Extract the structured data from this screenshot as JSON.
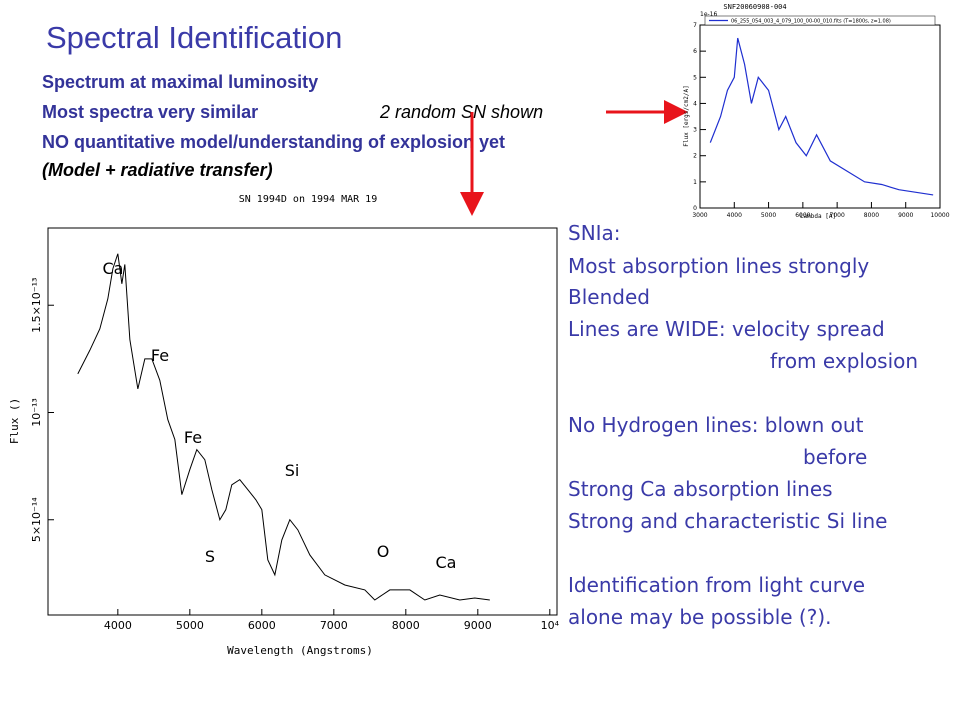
{
  "slide": {
    "title": "Spectral Identification",
    "bullets": [
      "Spectrum at maximal luminosity",
      "Most spectra very similar",
      "NO quantitative model/understanding of explosion yet",
      "(Model + radiative transfer)"
    ],
    "note": "2 random SN shown",
    "notes_block": [
      "SNIa:",
      "Most absorption lines strongly",
      "Blended",
      "Lines are WIDE: velocity spread",
      "from explosion",
      "No Hydrogen lines: blown out",
      "before",
      "Strong Ca absorption lines",
      "Strong and characteristic Si line",
      "Identification from light curve",
      "alone may be possible (?)."
    ]
  },
  "chart_data": [
    {
      "type": "line",
      "title": "SN 1994D on 1994 MAR 19",
      "x_label": "Wavelength (Angstroms)",
      "y_label": "Flux ()",
      "color": "#000000",
      "x": [
        3444,
        3611,
        3750,
        3861,
        3931,
        4000,
        4056,
        4097,
        4167,
        4278,
        4375,
        4472,
        4583,
        4694,
        4792,
        4889,
        5000,
        5097,
        5208,
        5306,
        5417,
        5500,
        5583,
        5694,
        5806,
        5917,
        6000,
        6083,
        6181,
        6278,
        6389,
        6500,
        6667,
        6875,
        7153,
        7431,
        7569,
        7778,
        8056,
        8264,
        8472,
        8750,
        8958,
        9167
      ],
      "values": [
        1.18e-13,
        1.29e-13,
        1.39e-13,
        1.53e-13,
        1.67e-13,
        1.74e-13,
        1.6e-13,
        1.69e-13,
        1.34e-13,
        1.11e-13,
        1.25e-13,
        1.25e-13,
        1.15e-13,
        9.67e-14,
        8.74e-14,
        6.17e-14,
        7.34e-14,
        8.27e-14,
        7.8e-14,
        6.4e-14,
        5e-14,
        5.47e-14,
        6.63e-14,
        6.87e-14,
        6.4e-14,
        5.93e-14,
        5.47e-14,
        3.13e-14,
        2.43e-14,
        4.06e-14,
        5e-14,
        4.53e-14,
        3.36e-14,
        2.43e-14,
        1.96e-14,
        1.73e-14,
        1.26e-14,
        1.73e-14,
        1.73e-14,
        1.26e-14,
        1.49e-14,
        1.26e-14,
        1.35e-14,
        1.26e-14
      ],
      "xlim": [
        3030,
        10100
      ],
      "xticks": [
        4000,
        5000,
        6000,
        7000,
        8000,
        9000,
        {
          "value": 10000,
          "label": "10⁴"
        }
      ],
      "ylim": [
        5.6e-15,
        1.86e-13
      ],
      "yticks": [
        {
          "value": 5e-14,
          "label": "5×10⁻¹⁴"
        },
        {
          "value": 1e-13,
          "label": "10⁻¹³"
        },
        {
          "value": 1.5e-13,
          "label": "1.5×10⁻¹³"
        }
      ],
      "annotations": [
        "Ca",
        "Fe",
        "Fe",
        "Si",
        "S",
        "O",
        "Ca"
      ]
    },
    {
      "type": "line",
      "title": "SNF20060908-004",
      "x_label": "Lambda [A]",
      "y_label": "Flux [ergs/cm2/A]",
      "y_multiplier": "1e-16",
      "x": [
        3300,
        3600,
        3800,
        4000,
        4100,
        4300,
        4500,
        4700,
        5000,
        5300,
        5500,
        5800,
        6100,
        6400,
        6800,
        7300,
        7800,
        8300,
        8800,
        9300,
        9800
      ],
      "series": [
        {
          "name": "06_255_054_003_4_079_100_00-00_010.fits (T=1800s, z=1.08)",
          "color": "#1f2fd0",
          "values": [
            2.5,
            3.5,
            4.5,
            5,
            6.5,
            5.5,
            4,
            5,
            4.5,
            3,
            3.5,
            2.5,
            2,
            2.8,
            1.8,
            1.4,
            1,
            0.9,
            0.7,
            0.6,
            0.5
          ]
        }
      ],
      "xlim": [
        3000,
        10000
      ],
      "xticks": [
        3000,
        4000,
        5000,
        6000,
        7000,
        8000,
        9000,
        10000
      ],
      "ylim": [
        0,
        7
      ],
      "yticks": [
        0,
        1,
        2,
        3,
        4,
        5,
        6,
        7
      ]
    }
  ]
}
